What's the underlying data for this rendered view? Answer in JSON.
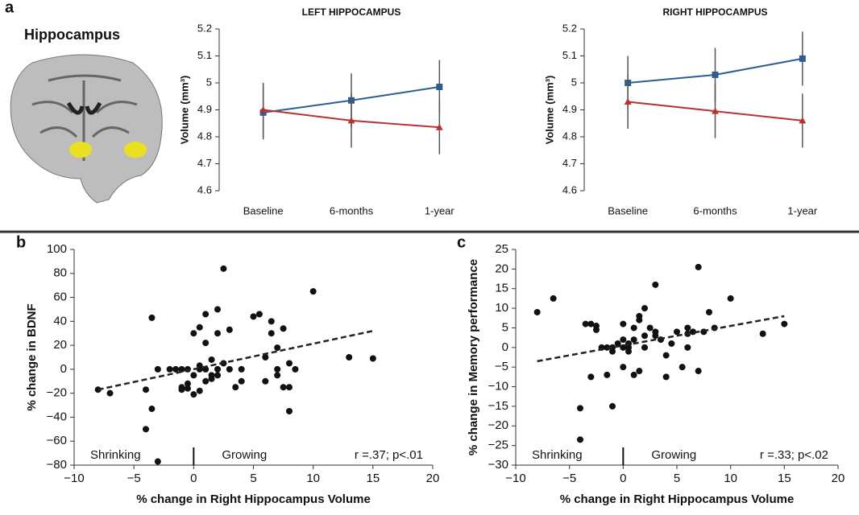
{
  "labels": {
    "a": "a",
    "b": "b",
    "c": "c",
    "hippocampus": "Hippocampus"
  },
  "chart_data": [
    {
      "type": "line",
      "title": "LEFT HIPPOCAMPUS",
      "y_label": "Volume (mm³)",
      "categories": [
        "Baseline",
        "6-months",
        "1-year"
      ],
      "series": [
        {
          "color": "#2f5d8f",
          "marker": "square",
          "values": [
            4.89,
            4.935,
            4.985
          ],
          "errors": [
            0.1,
            0.1,
            0.1
          ]
        },
        {
          "color": "#b83232",
          "marker": "triangle",
          "values": [
            4.9,
            4.86,
            4.835
          ],
          "errors": [
            0.1,
            0.1,
            0.1
          ]
        }
      ],
      "ylim": [
        4.6,
        5.2
      ],
      "yticks": [
        4.6,
        4.7,
        4.8,
        4.9,
        5,
        5.1,
        5.2
      ]
    },
    {
      "type": "line",
      "title": "RIGHT HIPPOCAMPUS",
      "y_label": "Volume (mm³)",
      "categories": [
        "Baseline",
        "6-months",
        "1-year"
      ],
      "series": [
        {
          "color": "#2f5d8f",
          "marker": "square",
          "values": [
            5.0,
            5.03,
            5.09
          ],
          "errors": [
            0.1,
            0.1,
            0.1
          ]
        },
        {
          "color": "#b83232",
          "marker": "triangle",
          "values": [
            4.93,
            4.895,
            4.86
          ],
          "errors": [
            0.1,
            0.1,
            0.1
          ]
        }
      ],
      "ylim": [
        4.6,
        5.2
      ],
      "yticks": [
        4.6,
        4.7,
        4.8,
        4.9,
        5,
        5.1,
        5.2
      ]
    },
    {
      "type": "scatter",
      "x_label": "% change in Right Hippocampus Volume",
      "y_label": "% change in BDNF",
      "annotations": [
        "Shrinking",
        "Growing",
        "r =.37; p<.01"
      ],
      "x": [
        -8,
        -7,
        -4,
        -4,
        -3.5,
        -3.5,
        -3,
        -3,
        -2,
        -1.5,
        -1,
        -1,
        -1,
        -0.5,
        -0.5,
        -0.5,
        0,
        0,
        0,
        0.5,
        0.5,
        0.5,
        0.5,
        1,
        1,
        1,
        1,
        1.5,
        1.5,
        1.5,
        2,
        2,
        2,
        2,
        2.5,
        2.5,
        3,
        3,
        3.5,
        4,
        4,
        5,
        5.5,
        6,
        6,
        6.5,
        6.5,
        7,
        7,
        7,
        7.5,
        7.5,
        8,
        8,
        8,
        8.5,
        10,
        13,
        15
      ],
      "y": [
        -17,
        -20,
        -17,
        -50,
        43,
        -33,
        0,
        -77,
        0,
        0,
        0,
        -15,
        -17,
        -16,
        -12,
        0,
        -21,
        -5,
        30,
        0,
        -18,
        35,
        3,
        0,
        -10,
        22,
        46,
        8,
        -5,
        -8,
        50,
        30,
        0,
        -5,
        84,
        5,
        33,
        0,
        -15,
        0,
        -10,
        44,
        46,
        -10,
        10,
        40,
        30,
        -5,
        18,
        0,
        -15,
        34,
        -35,
        -15,
        5,
        0,
        65,
        10,
        9
      ],
      "trendline": {
        "x": [
          -8,
          15
        ],
        "y": [
          -17,
          32
        ]
      },
      "xlim": [
        -10,
        20
      ],
      "xticks": [
        {
          "value": -10,
          "label": "−10"
        },
        {
          "value": -5,
          "label": "−5"
        },
        0,
        5,
        10,
        15,
        20
      ],
      "ylim": [
        -80,
        100
      ],
      "yticks": [
        {
          "value": -80,
          "label": "−80"
        },
        {
          "value": -60,
          "label": "−60"
        },
        {
          "value": -40,
          "label": "−40"
        },
        {
          "value": -20,
          "label": "−20"
        },
        0,
        20,
        40,
        60,
        80,
        100
      ]
    },
    {
      "type": "scatter",
      "x_label": "% change in Right Hippocampus Volume",
      "y_label": "% change in Memory performance",
      "annotations": [
        "Shrinking",
        "Growing",
        "r =.33; p<.02"
      ],
      "x": [
        -8,
        -6.5,
        -4,
        -4,
        -3.5,
        -3,
        -3,
        -2.5,
        -2.5,
        -2,
        -1.5,
        -1.5,
        -1,
        -1,
        -1,
        -0.5,
        0,
        0,
        0,
        0,
        0.5,
        0.5,
        0.5,
        1,
        1,
        1,
        1.5,
        1.5,
        1.5,
        2,
        2,
        2,
        2.5,
        3,
        3,
        3,
        3.5,
        4,
        4,
        4.5,
        5,
        5.5,
        6,
        6,
        6,
        6.5,
        7,
        7,
        7.5,
        8,
        8.5,
        10,
        13,
        15
      ],
      "y": [
        9,
        12.5,
        -15.5,
        -23.5,
        6,
        6,
        -7.5,
        4.5,
        5.5,
        0,
        -7,
        0,
        -1,
        0,
        -15,
        1,
        2,
        6,
        0,
        -5,
        1,
        -1,
        0,
        2,
        5,
        -7,
        8,
        -6,
        7,
        0,
        3,
        10,
        5,
        16,
        4,
        3,
        2,
        -2,
        -7.5,
        1,
        4,
        -5,
        5,
        3.5,
        0,
        4,
        20.5,
        -6,
        4,
        9,
        5,
        12.5,
        3.5,
        6
      ],
      "trendline": {
        "x": [
          -8,
          15
        ],
        "y": [
          -3.5,
          8
        ]
      },
      "xlim": [
        -10,
        20
      ],
      "xticks": [
        {
          "value": -10,
          "label": "−10"
        },
        {
          "value": -5,
          "label": "−5"
        },
        0,
        5,
        10,
        15,
        20
      ],
      "ylim": [
        -30,
        25
      ],
      "yticks": [
        {
          "value": -30,
          "label": "−30"
        },
        {
          "value": -25,
          "label": "−25"
        },
        {
          "value": -20,
          "label": "−20"
        },
        {
          "value": -15,
          "label": "−15"
        },
        {
          "value": -10,
          "label": "−10"
        },
        {
          "value": -5,
          "label": "−5"
        },
        0,
        5,
        10,
        15,
        20,
        25
      ]
    }
  ]
}
